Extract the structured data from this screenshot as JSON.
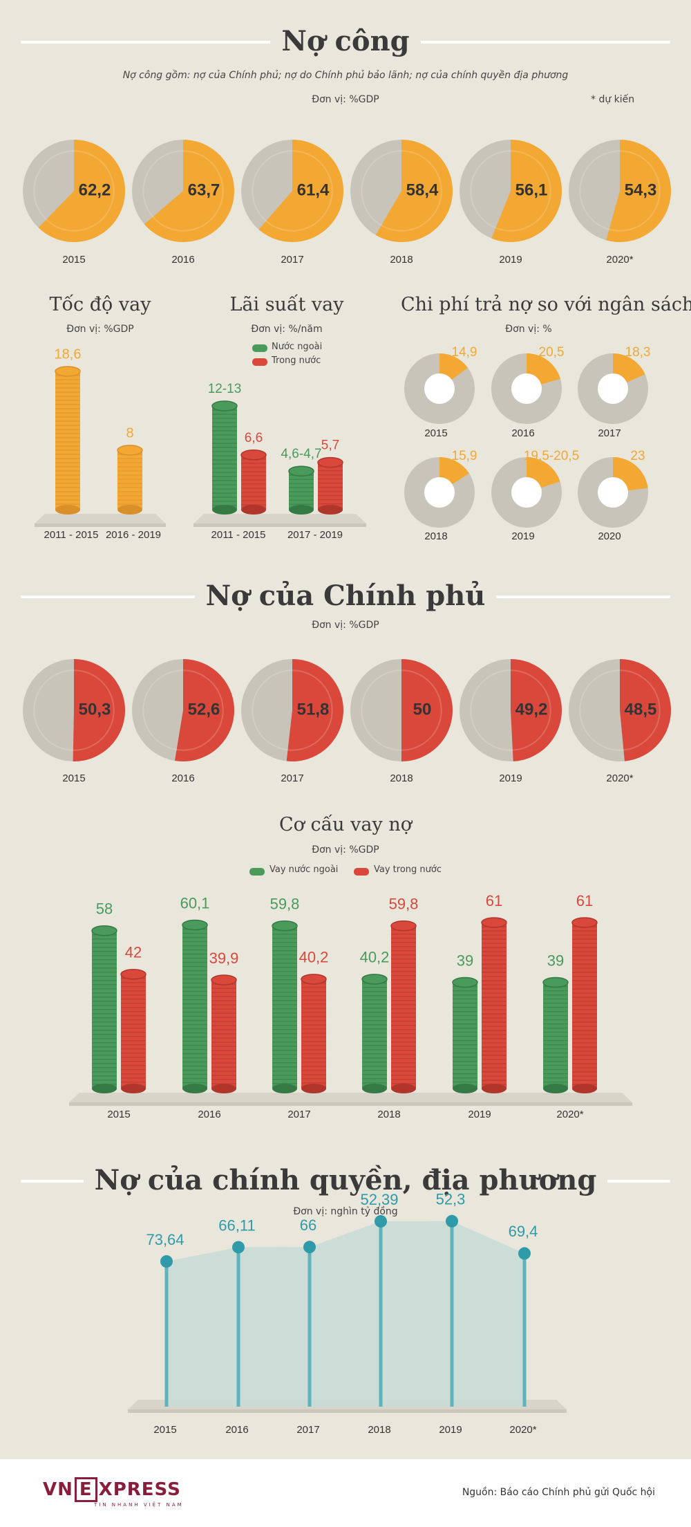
{
  "sections": {
    "public_debt": {
      "title": "Nợ công",
      "note": "Nợ công gồm: nợ của Chính phủ; nợ do Chính phủ bảo lãnh; nợ của chính quyền địa phương",
      "unit": "Đơn vị: %GDP",
      "forecast_note": "* dự kiến"
    },
    "borrow_speed": {
      "title": "Tốc độ vay",
      "unit": "Đơn vị: %GDP"
    },
    "interest": {
      "title": "Lãi suất vay",
      "unit": "Đơn vị: %/năm",
      "legend_foreign": "Nước ngoài",
      "legend_domestic": "Trong nước"
    },
    "repayment": {
      "title": "Chi phí trả nợ so với ngân sách",
      "unit": "Đơn vị: %"
    },
    "gov_debt": {
      "title": "Nợ của Chính phủ",
      "unit": "Đơn vị: %GDP"
    },
    "structure": {
      "title": "Cơ cấu vay nợ",
      "unit": "Đơn vị: %GDP",
      "legend_foreign": "Vay nước ngoài",
      "legend_domestic": "Vay trong nước"
    },
    "local_debt": {
      "title": "Nợ của chính quyền, địa phương",
      "unit": "Đơn vị: nghìn tỷ đồng"
    }
  },
  "colors": {
    "orange": "#f2a833",
    "red": "#d9483b",
    "green": "#4a9a5b",
    "gray": "#c8c4ba",
    "teal": "#2f9aa8",
    "teal_fill": "#c9dcd6"
  },
  "footer": {
    "logo_left": "VN",
    "logo_e": "E",
    "logo_right": "XPRESS",
    "logo_tag": "TIN NHANH VIỆT NAM",
    "source": "Nguồn: Báo cáo Chính phủ gửi Quốc hội"
  },
  "chart_data": [
    {
      "type": "pie",
      "name": "public_debt",
      "categories": [
        "2015",
        "2016",
        "2017",
        "2018",
        "2019",
        "2020*"
      ],
      "values": [
        62.2,
        63.7,
        61.4,
        58.4,
        56.1,
        54.3
      ],
      "labels": [
        "62,2",
        "63,7",
        "61,4",
        "58,4",
        "56,1",
        "54,3"
      ]
    },
    {
      "type": "bar",
      "name": "borrow_speed",
      "categories": [
        "2011 - 2015",
        "2016 - 2019"
      ],
      "values": [
        18.6,
        8
      ],
      "labels": [
        "18,6",
        "8"
      ]
    },
    {
      "type": "bar",
      "name": "interest",
      "categories": [
        "2011 - 2015",
        "2017 - 2019"
      ],
      "series": [
        {
          "name": "Nước ngoài",
          "values": [
            12.5,
            4.65
          ],
          "labels": [
            "12-13",
            "4,6-4,7"
          ]
        },
        {
          "name": "Trong nước",
          "values": [
            6.6,
            5.7
          ],
          "labels": [
            "6,6",
            "5,7"
          ]
        }
      ]
    },
    {
      "type": "pie",
      "name": "repayment",
      "categories": [
        "2015",
        "2016",
        "2017",
        "2018",
        "2019",
        "2020"
      ],
      "values": [
        14.9,
        20.5,
        18.3,
        15.9,
        20,
        23
      ],
      "labels": [
        "14,9",
        "20,5",
        "18,3",
        "15,9",
        "19,5-20,5",
        "23"
      ]
    },
    {
      "type": "pie",
      "name": "gov_debt",
      "categories": [
        "2015",
        "2016",
        "2017",
        "2018",
        "2019",
        "2020*"
      ],
      "values": [
        50.3,
        52.6,
        51.8,
        50,
        49.2,
        48.5
      ],
      "labels": [
        "50,3",
        "52,6",
        "51,8",
        "50",
        "49,2",
        "48,5"
      ]
    },
    {
      "type": "bar",
      "name": "structure",
      "categories": [
        "2015",
        "2016",
        "2017",
        "2018",
        "2019",
        "2020*"
      ],
      "series": [
        {
          "name": "Vay nước ngoài",
          "values": [
            58,
            60.1,
            59.8,
            40.2,
            39,
            39
          ],
          "labels": [
            "58",
            "60,1",
            "59,8",
            "40,2",
            "39",
            "39"
          ]
        },
        {
          "name": "Vay trong nước",
          "values": [
            42,
            39.9,
            40.2,
            59.8,
            61,
            61
          ],
          "labels": [
            "42",
            "39,9",
            "40,2",
            "59,8",
            "61",
            "61"
          ]
        }
      ]
    },
    {
      "type": "area",
      "name": "local_debt",
      "categories": [
        "2015",
        "2016",
        "2017",
        "2018",
        "2019",
        "2020*"
      ],
      "values": [
        73.64,
        66.11,
        66,
        52.39,
        52.3,
        69.4
      ],
      "labels": [
        "73,64",
        "66,11",
        "66",
        "52,39",
        "52,3",
        "69,4"
      ]
    }
  ]
}
